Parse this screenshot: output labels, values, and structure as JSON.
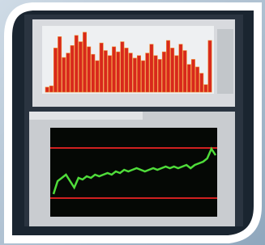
{
  "photo": {
    "upper_chart": {
      "bars": [
        8,
        10,
        70,
        88,
        55,
        62,
        74,
        90,
        80,
        95,
        72,
        60,
        50,
        78,
        66,
        58,
        72,
        64,
        80,
        70,
        62,
        54,
        58,
        50,
        62,
        76,
        58,
        52,
        64,
        82,
        70,
        58,
        76,
        66,
        44,
        52,
        40,
        30,
        12,
        82
      ]
    },
    "lower_chart": {
      "line": [
        -14,
        -6,
        -4,
        -2,
        -6,
        -10,
        -4,
        -5,
        -3,
        -4,
        -2,
        -3,
        -2,
        -1,
        -2,
        0,
        -1,
        1,
        0,
        1,
        2,
        1,
        0,
        1,
        2,
        1,
        2,
        3,
        2,
        3,
        2,
        3,
        4,
        2,
        4,
        5,
        6,
        8,
        14,
        10
      ]
    }
  }
}
